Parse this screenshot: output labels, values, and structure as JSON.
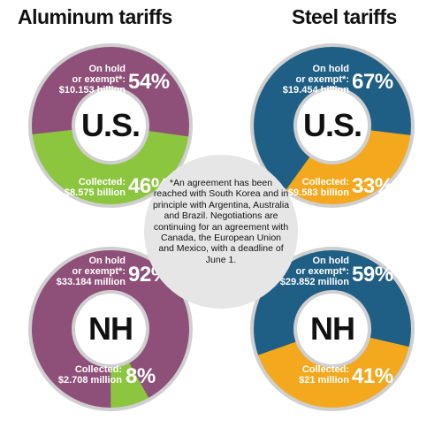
{
  "titles": {
    "aluminum": "Aluminum tariffs",
    "steel": "Steel tariffs"
  },
  "note": "*An agreement has been reached with South Korea and in principle with Argentina, Australia and Brazil. Negotiations are continuing for an agreement with Canada, the European Union and Mexico, with a deadline of June 1.",
  "colors": {
    "aluminum_hold": "#8e4f78",
    "aluminum_collected": "#8cc63f",
    "steel_hold": "#1f5f85",
    "steel_collected": "#f4a81d",
    "note_bg": "#e6e6e6"
  },
  "chart_data": [
    {
      "type": "pie",
      "group": "Aluminum tariffs",
      "center_label": "U.S.",
      "slices": [
        {
          "label_line1": "On hold",
          "label_line2": "or exempt*:",
          "amount": "$10.153 billion",
          "percent": 54,
          "percent_text": "54%"
        },
        {
          "label_line1": "",
          "label_line2": "Collected:",
          "amount": "$8.575 billion",
          "percent": 46,
          "percent_text": "46%"
        }
      ]
    },
    {
      "type": "pie",
      "group": "Steel tariffs",
      "center_label": "U.S.",
      "slices": [
        {
          "label_line1": "On hold",
          "label_line2": "or exempt*:",
          "amount": "$19.454 billion",
          "percent": 67,
          "percent_text": "67%"
        },
        {
          "label_line1": "",
          "label_line2": "Collected:",
          "amount": "$9.583 billion",
          "percent": 33,
          "percent_text": "33%"
        }
      ]
    },
    {
      "type": "pie",
      "group": "Aluminum tariffs",
      "center_label": "NH",
      "slices": [
        {
          "label_line1": "On hold",
          "label_line2": "or exempt*:",
          "amount": "$33.184 million",
          "percent": 92,
          "percent_text": "92%"
        },
        {
          "label_line1": "",
          "label_line2": "Collected:",
          "amount": "$2.708 million",
          "percent": 8,
          "percent_text": "8%"
        }
      ]
    },
    {
      "type": "pie",
      "group": "Steel tariffs",
      "center_label": "NH",
      "slices": [
        {
          "label_line1": "On hold",
          "label_line2": "or exempt*:",
          "amount": "$29.852 million",
          "percent": 59,
          "percent_text": "59%"
        },
        {
          "label_line1": "",
          "label_line2": "Collected:",
          "amount": "$21 million",
          "percent": 41,
          "percent_text": "41%"
        }
      ]
    }
  ]
}
